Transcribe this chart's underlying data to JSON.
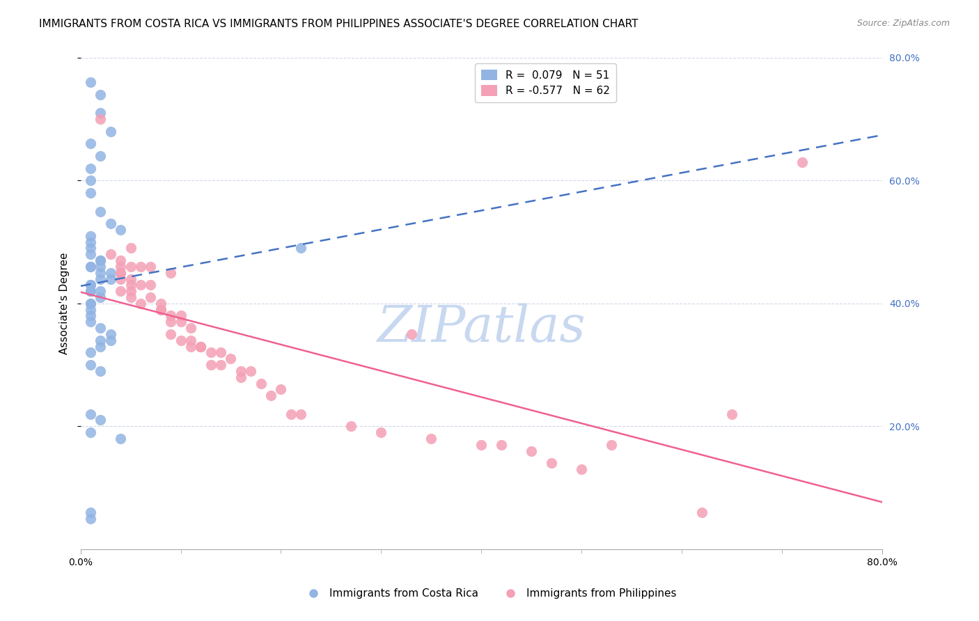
{
  "title": "IMMIGRANTS FROM COSTA RICA VS IMMIGRANTS FROM PHILIPPINES ASSOCIATE'S DEGREE CORRELATION CHART",
  "source": "Source: ZipAtlas.com",
  "xlabel": "",
  "ylabel": "Associate's Degree",
  "xlim": [
    0.0,
    0.8
  ],
  "ylim": [
    0.0,
    0.8
  ],
  "xticks": [
    0.0,
    0.1,
    0.2,
    0.3,
    0.4,
    0.5,
    0.6,
    0.7,
    0.8
  ],
  "xticklabels": [
    "0.0%",
    "",
    "",
    "",
    "",
    "",
    "",
    "",
    "80.0%"
  ],
  "yticks_right": [
    0.2,
    0.4,
    0.6,
    0.8
  ],
  "ytick_right_labels": [
    "20.0%",
    "40.0%",
    "60.0%",
    "80.0%"
  ],
  "blue_R": 0.079,
  "blue_N": 51,
  "pink_R": -0.577,
  "pink_N": 62,
  "blue_color": "#92b4e3",
  "pink_color": "#f4a0b5",
  "blue_line_color": "#4472c4",
  "pink_line_color": "#f06090",
  "watermark": "ZIPatlas",
  "watermark_color": "#c8d8f0",
  "legend_label_blue": "Immigrants from Costa Rica",
  "legend_label_pink": "Immigrants from Philippines",
  "blue_scatter_x": [
    0.01,
    0.02,
    0.02,
    0.03,
    0.01,
    0.02,
    0.01,
    0.01,
    0.01,
    0.02,
    0.03,
    0.04,
    0.01,
    0.01,
    0.01,
    0.01,
    0.02,
    0.02,
    0.01,
    0.01,
    0.02,
    0.03,
    0.02,
    0.03,
    0.02,
    0.01,
    0.01,
    0.01,
    0.01,
    0.02,
    0.02,
    0.01,
    0.01,
    0.01,
    0.22,
    0.01,
    0.01,
    0.02,
    0.03,
    0.02,
    0.03,
    0.02,
    0.01,
    0.01,
    0.02,
    0.01,
    0.02,
    0.01,
    0.04,
    0.01,
    0.01
  ],
  "blue_scatter_y": [
    0.76,
    0.74,
    0.71,
    0.68,
    0.66,
    0.64,
    0.62,
    0.6,
    0.58,
    0.55,
    0.53,
    0.52,
    0.51,
    0.5,
    0.49,
    0.48,
    0.47,
    0.47,
    0.46,
    0.46,
    0.46,
    0.45,
    0.45,
    0.44,
    0.44,
    0.43,
    0.43,
    0.42,
    0.42,
    0.42,
    0.41,
    0.4,
    0.4,
    0.39,
    0.49,
    0.38,
    0.37,
    0.36,
    0.35,
    0.34,
    0.34,
    0.33,
    0.32,
    0.3,
    0.29,
    0.22,
    0.21,
    0.19,
    0.18,
    0.06,
    0.05
  ],
  "pink_scatter_x": [
    0.02,
    0.05,
    0.03,
    0.04,
    0.04,
    0.06,
    0.07,
    0.04,
    0.05,
    0.04,
    0.04,
    0.05,
    0.05,
    0.07,
    0.06,
    0.05,
    0.04,
    0.05,
    0.07,
    0.08,
    0.09,
    0.06,
    0.08,
    0.08,
    0.09,
    0.1,
    0.09,
    0.1,
    0.11,
    0.09,
    0.1,
    0.11,
    0.12,
    0.11,
    0.12,
    0.12,
    0.13,
    0.14,
    0.15,
    0.14,
    0.13,
    0.16,
    0.17,
    0.16,
    0.18,
    0.2,
    0.19,
    0.22,
    0.21,
    0.27,
    0.3,
    0.33,
    0.35,
    0.4,
    0.42,
    0.45,
    0.47,
    0.5,
    0.53,
    0.62,
    0.65,
    0.72
  ],
  "pink_scatter_y": [
    0.7,
    0.49,
    0.48,
    0.47,
    0.46,
    0.46,
    0.46,
    0.45,
    0.46,
    0.45,
    0.44,
    0.44,
    0.43,
    0.43,
    0.43,
    0.42,
    0.42,
    0.41,
    0.41,
    0.4,
    0.45,
    0.4,
    0.39,
    0.39,
    0.38,
    0.38,
    0.37,
    0.37,
    0.36,
    0.35,
    0.34,
    0.34,
    0.33,
    0.33,
    0.33,
    0.33,
    0.32,
    0.32,
    0.31,
    0.3,
    0.3,
    0.29,
    0.29,
    0.28,
    0.27,
    0.26,
    0.25,
    0.22,
    0.22,
    0.2,
    0.19,
    0.35,
    0.18,
    0.17,
    0.17,
    0.16,
    0.14,
    0.13,
    0.17,
    0.06,
    0.22,
    0.63
  ],
  "grid_color": "#d0d8e8",
  "background_color": "#ffffff",
  "title_fontsize": 11,
  "axis_label_fontsize": 11,
  "tick_fontsize": 10,
  "right_tick_color": "#4472c4"
}
